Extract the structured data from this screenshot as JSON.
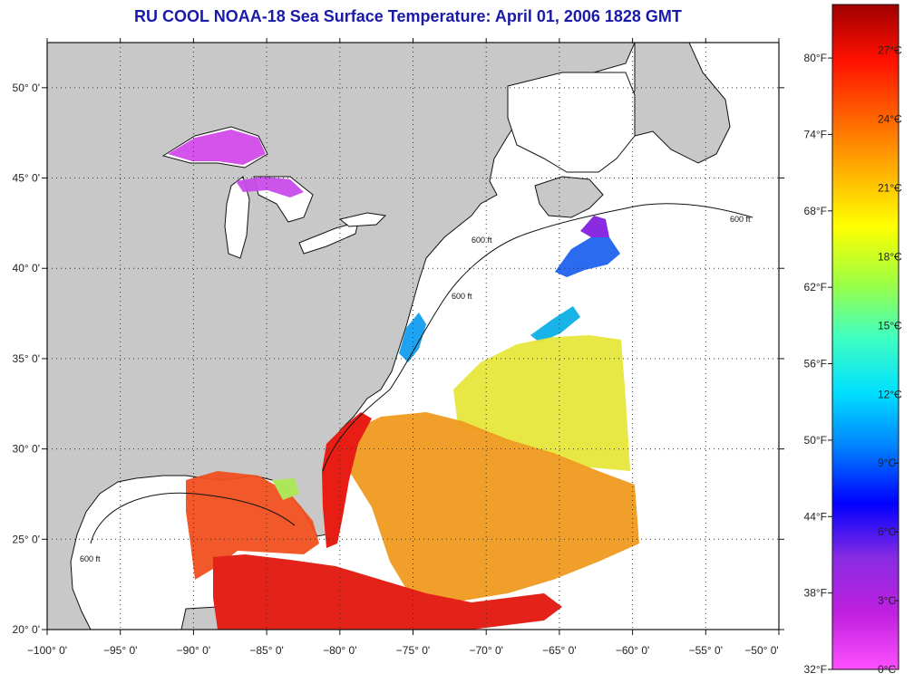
{
  "title": "RU COOL  NOAA-18  Sea Surface Temperature:  April 01, 2006 1828 GMT",
  "map": {
    "lon_range": [
      -100,
      -50
    ],
    "lat_range": [
      20,
      52.5
    ],
    "lon_ticks": [
      {
        "value": -100,
        "label": "−100° 0'"
      },
      {
        "value": -95,
        "label": "−95° 0'"
      },
      {
        "value": -90,
        "label": "−90° 0'"
      },
      {
        "value": -85,
        "label": "−85° 0'"
      },
      {
        "value": -80,
        "label": "−80° 0'"
      },
      {
        "value": -75,
        "label": "−75° 0'"
      },
      {
        "value": -70,
        "label": "−70° 0'"
      },
      {
        "value": -65,
        "label": "−65° 0'"
      },
      {
        "value": -60,
        "label": "−60° 0'"
      },
      {
        "value": -55,
        "label": "−55° 0'"
      },
      {
        "value": -50,
        "label": "−50° 0'"
      }
    ],
    "lat_ticks": [
      {
        "value": 20,
        "label": "20° 0'"
      },
      {
        "value": 25,
        "label": "25° 0'"
      },
      {
        "value": 30,
        "label": "30° 0'"
      },
      {
        "value": 35,
        "label": "35° 0'"
      },
      {
        "value": 40,
        "label": "40° 0'"
      },
      {
        "value": 45,
        "label": "45° 0'"
      },
      {
        "value": 50,
        "label": "50° 0'"
      }
    ],
    "contour_label": "600 ft",
    "land_color": "#c8c8c8",
    "grid": true
  },
  "colorbar": {
    "range_c": [
      0,
      29
    ],
    "celsius_labels": [
      "27°C",
      "24°C",
      "21°C",
      "18°C",
      "15°C",
      "12°C",
      "9°C",
      "6°C",
      "3°C",
      "0°C"
    ],
    "celsius_values": [
      27,
      24,
      21,
      18,
      15,
      12,
      9,
      6,
      3,
      0
    ],
    "fahrenheit_labels": [
      "80°F",
      "74°F",
      "68°F",
      "62°F",
      "56°F",
      "50°F",
      "44°F",
      "38°F",
      "32°F"
    ],
    "fahrenheit_values": [
      80,
      74,
      68,
      62,
      56,
      50,
      44,
      38,
      32
    ],
    "colors": [
      "#ff50ff",
      "#c020e0",
      "#8a2be2",
      "#0000ff",
      "#0080ff",
      "#00e0ff",
      "#40ffc0",
      "#a0ff40",
      "#ffff00",
      "#ffb000",
      "#ff6000",
      "#ff1000",
      "#a00000"
    ]
  }
}
